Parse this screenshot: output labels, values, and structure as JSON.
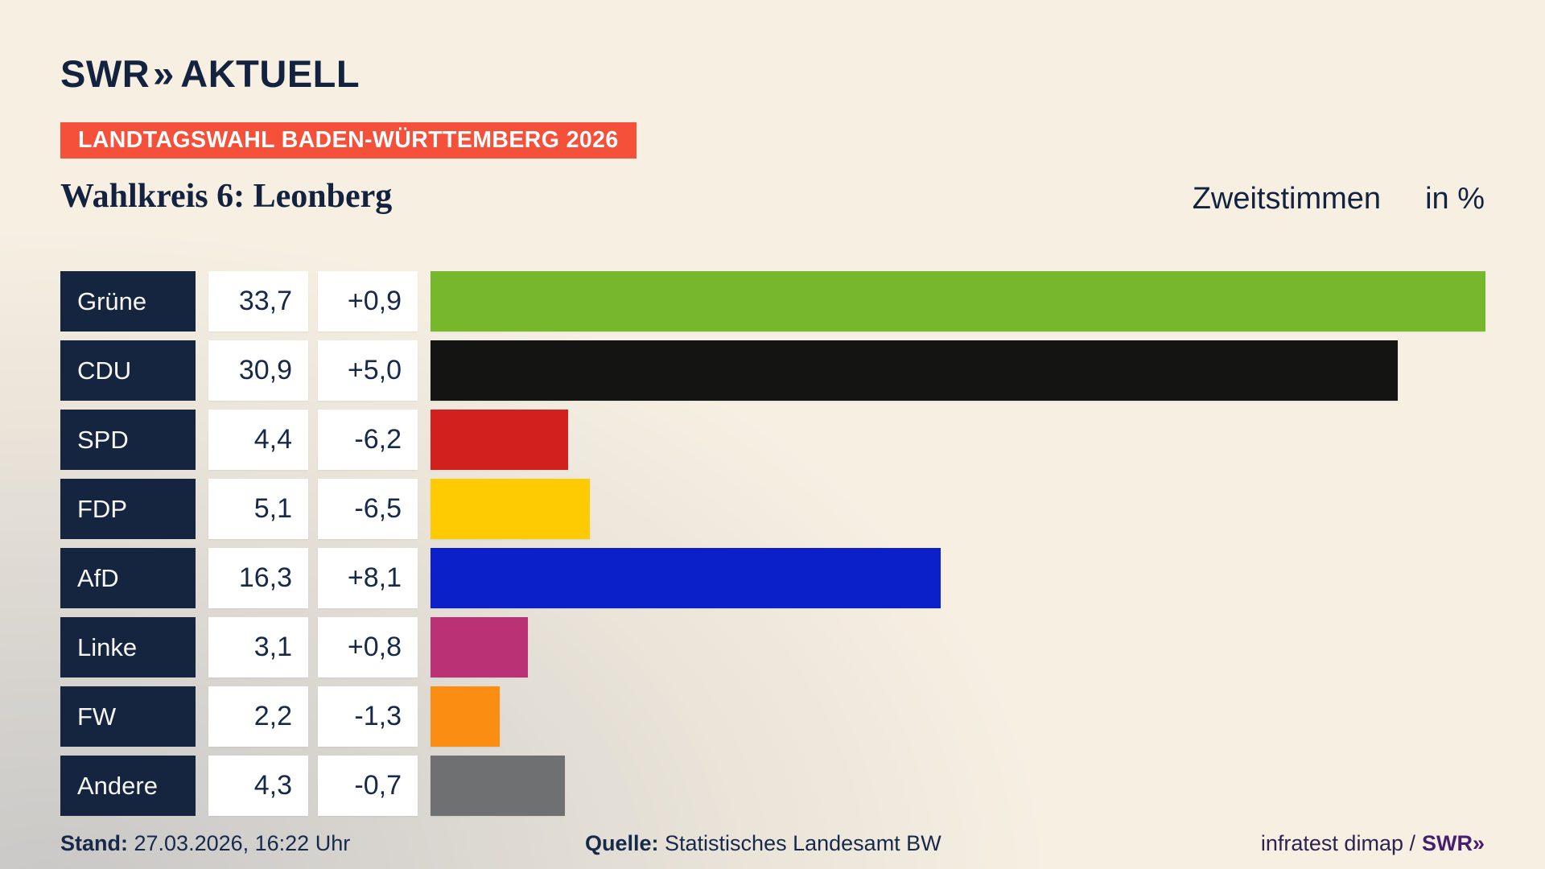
{
  "header": {
    "logo": {
      "swr": "SWR",
      "chevrons": "»",
      "aktuell": "AKTUELL"
    },
    "banner": "LANDTAGSWAHL BADEN-WÜRTTEMBERG 2026",
    "title": "Wahlkreis 6: Leonberg",
    "measure": "Zweitstimmen",
    "unit": "in %"
  },
  "chart_data": {
    "type": "bar",
    "orientation": "horizontal",
    "title": "Wahlkreis 6: Leonberg",
    "subtitle": "Zweitstimmen in %",
    "categories": [
      "Grüne",
      "CDU",
      "SPD",
      "FDP",
      "AfD",
      "Linke",
      "FW",
      "Andere"
    ],
    "values": [
      33.7,
      30.9,
      4.4,
      5.1,
      16.3,
      3.1,
      2.2,
      4.3
    ],
    "value_labels": [
      "33,7",
      "30,9",
      "4,4",
      "5,1",
      "16,3",
      "3,1",
      "2,2",
      "4,3"
    ],
    "change_values": [
      0.9,
      5.0,
      -6.2,
      -6.5,
      8.1,
      0.8,
      -1.3,
      -0.7
    ],
    "change_labels": [
      "+0,9",
      "+5,0",
      "-6,2",
      "-6,5",
      "+8,1",
      "+0,8",
      "-1,3",
      "-0,7"
    ],
    "bar_colors": [
      "#76b72b",
      "#141413",
      "#d2201f",
      "#fecb02",
      "#0b20c8",
      "#ba3175",
      "#fb8d13",
      "#6e7072"
    ],
    "xlim": [
      0,
      33.7
    ],
    "unit": "%",
    "grid": false,
    "legend": false
  },
  "footer": {
    "stand_label": "Stand:",
    "stand_value": " 27.03.2026, 16:22 Uhr",
    "quelle_label": "Quelle:",
    "quelle_value": " Statistisches Landesamt BW",
    "credit": "infratest dimap /",
    "credit_logo": "SWR»"
  },
  "colors": {
    "navy": "#152540",
    "banner_red": "#f4503a",
    "background_cream": "#f6efe2",
    "background_gray": "#c9c8c6",
    "cell_white": "#ffffff",
    "text_navy": "#16294a",
    "swr_purple": "#461e6e"
  }
}
